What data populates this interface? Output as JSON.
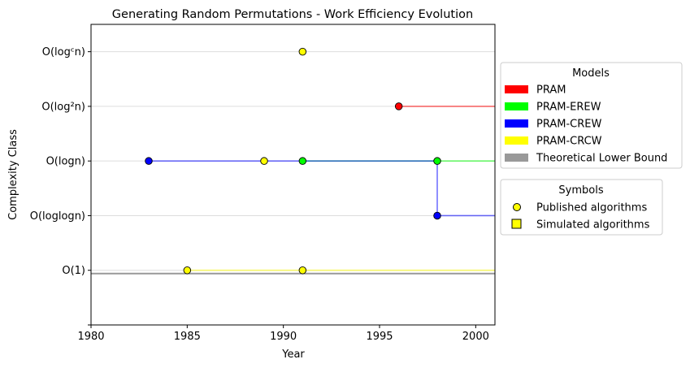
{
  "chart_data": {
    "type": "line",
    "title": "Generating Random Permutations - Work Efficiency Evolution",
    "xlabel": "Year",
    "ylabel": "Complexity Class",
    "xlim": [
      1980,
      2001
    ],
    "xticks": [
      1980,
      1985,
      1990,
      1995,
      2000
    ],
    "yticks": [
      {
        "value": 0,
        "label": ""
      },
      {
        "value": 1,
        "label": "O(1)"
      },
      {
        "value": 2,
        "label": "O(loglogn)"
      },
      {
        "value": 3,
        "label": "O(logn)"
      },
      {
        "value": 4,
        "label": "O(log²n)"
      },
      {
        "value": 5,
        "label": "O(logᶜn)"
      }
    ],
    "grid": "horizontal",
    "series": [
      {
        "name": "PRAM",
        "color": "#ff0000",
        "line": [
          [
            1996,
            4
          ],
          [
            2001,
            4
          ]
        ],
        "points": [
          [
            1996,
            4
          ]
        ]
      },
      {
        "name": "PRAM-EREW",
        "color": "#00ff00",
        "line": [
          [
            1991,
            3
          ],
          [
            2001,
            3
          ]
        ],
        "points": [
          [
            1991,
            3
          ],
          [
            1998,
            3
          ]
        ]
      },
      {
        "name": "PRAM-CREW",
        "color": "#0000ff",
        "line": [
          [
            1983,
            3
          ],
          [
            1998,
            3
          ],
          [
            1998,
            2
          ],
          [
            2001,
            2
          ]
        ],
        "points": [
          [
            1983,
            3
          ],
          [
            1998,
            2
          ]
        ]
      },
      {
        "name": "PRAM-CRCW",
        "color": "#ffff00",
        "line": [
          [
            1985,
            1
          ],
          [
            2001,
            1
          ]
        ],
        "points": [
          [
            1985,
            1
          ],
          [
            1989,
            3
          ],
          [
            1991,
            1
          ],
          [
            1991,
            5
          ]
        ]
      },
      {
        "name": "Theoretical Lower Bound",
        "color": "#999999",
        "line": [
          [
            1980,
            0.94
          ],
          [
            2001,
            0.94
          ]
        ],
        "points": []
      }
    ],
    "legend_models": {
      "title": "Models",
      "placement": "right",
      "entries": [
        {
          "label": "PRAM",
          "color": "#ff0000"
        },
        {
          "label": "PRAM-EREW",
          "color": "#00ff00"
        },
        {
          "label": "PRAM-CREW",
          "color": "#0000ff"
        },
        {
          "label": "PRAM-CRCW",
          "color": "#ffff00"
        },
        {
          "label": "Theoretical Lower Bound",
          "color": "#999999"
        }
      ]
    },
    "legend_symbols": {
      "title": "Symbols",
      "placement": "right",
      "entries": [
        {
          "label": "Published algorithms",
          "marker": "circle"
        },
        {
          "label": "Simulated algorithms",
          "marker": "square"
        }
      ]
    }
  }
}
